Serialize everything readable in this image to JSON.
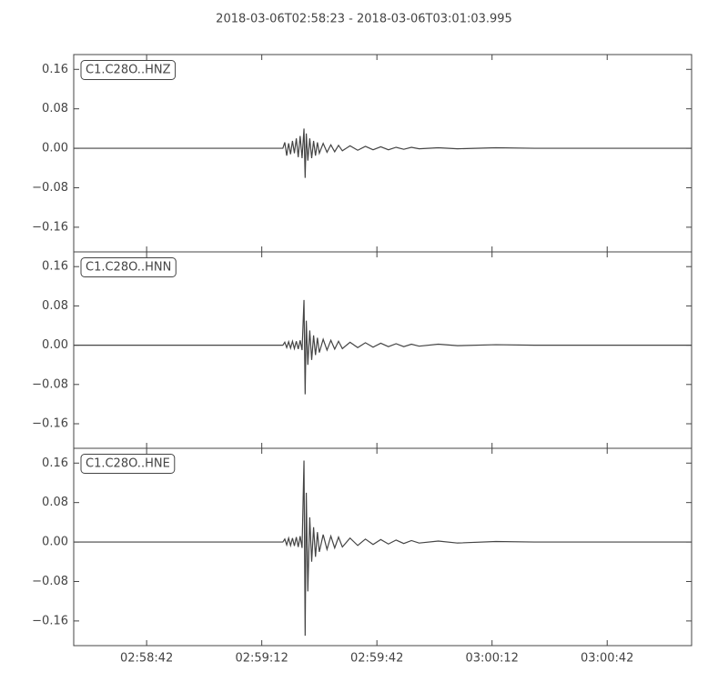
{
  "title": "2018-03-06T02:58:23  -  2018-03-06T03:01:03.995",
  "chart_data": [
    {
      "type": "line",
      "label": "C1.C28O..HNZ",
      "color": "#444444",
      "x": [
        0,
        54.5,
        55,
        55.5,
        56,
        56.5,
        57,
        57.5,
        58,
        58.5,
        59,
        59.5,
        60,
        60.3,
        60.6,
        61,
        61.5,
        62,
        62.5,
        63,
        63.5,
        64,
        65,
        66,
        67,
        68,
        69,
        70,
        72,
        74,
        76,
        78,
        80,
        82,
        84,
        86,
        88,
        90,
        95,
        100,
        110,
        120,
        160.99
      ],
      "values": [
        0,
        0,
        0.012,
        -0.015,
        0.01,
        -0.012,
        0.015,
        -0.01,
        0.02,
        -0.018,
        0.025,
        -0.02,
        0.04,
        -0.06,
        0.03,
        -0.025,
        0.02,
        -0.02,
        0.015,
        -0.015,
        0.012,
        -0.01,
        0.01,
        -0.008,
        0.007,
        -0.007,
        0.006,
        -0.005,
        0.005,
        -0.004,
        0.004,
        -0.003,
        0.003,
        -0.003,
        0.002,
        -0.002,
        0.002,
        -0.001,
        0.001,
        -0.001,
        0.001,
        0,
        0
      ],
      "xlim": [
        0,
        160.995
      ],
      "ylim": [
        -0.21,
        0.19
      ],
      "yticks": [
        {
          "value": -0.16,
          "label": "−0.16"
        },
        {
          "value": -0.08,
          "label": "−0.08"
        },
        {
          "value": 0,
          "label": "0.00"
        },
        0.08,
        0.16
      ]
    },
    {
      "type": "line",
      "label": "C1.C28O..HNN",
      "color": "#444444",
      "x": [
        0,
        54.5,
        55,
        55.5,
        56,
        56.5,
        57,
        57.5,
        58,
        58.5,
        59,
        59.5,
        60,
        60.3,
        60.6,
        61,
        61.5,
        62,
        62.5,
        63,
        63.5,
        64,
        65,
        66,
        67,
        68,
        69,
        70,
        72,
        74,
        76,
        78,
        80,
        82,
        84,
        86,
        88,
        90,
        95,
        100,
        110,
        120,
        160.99
      ],
      "values": [
        0,
        0,
        0.006,
        -0.005,
        0.007,
        -0.006,
        0.008,
        -0.007,
        0.008,
        -0.008,
        0.01,
        -0.01,
        0.092,
        -0.1,
        0.05,
        -0.04,
        0.03,
        -0.03,
        0.02,
        -0.02,
        0.015,
        -0.015,
        0.012,
        -0.01,
        0.01,
        -0.008,
        0.008,
        -0.007,
        0.006,
        -0.005,
        0.005,
        -0.004,
        0.004,
        -0.003,
        0.003,
        -0.003,
        0.002,
        -0.002,
        0.002,
        -0.001,
        0.001,
        0,
        0
      ],
      "xlim": [
        0,
        160.995
      ],
      "ylim": [
        -0.21,
        0.19
      ],
      "yticks": [
        {
          "value": -0.16,
          "label": "−0.16"
        },
        {
          "value": -0.08,
          "label": "−0.08"
        },
        {
          "value": 0,
          "label": "0.00"
        },
        0.08,
        0.16
      ]
    },
    {
      "type": "line",
      "label": "C1.C28O..HNE",
      "color": "#444444",
      "x": [
        0,
        54.5,
        55,
        55.5,
        56,
        56.5,
        57,
        57.5,
        58,
        58.5,
        59,
        59.5,
        60,
        60.3,
        60.6,
        61,
        61.5,
        62,
        62.5,
        63,
        63.5,
        64,
        65,
        66,
        67,
        68,
        69,
        70,
        72,
        74,
        76,
        78,
        80,
        82,
        84,
        86,
        88,
        90,
        95,
        100,
        110,
        120,
        160.99
      ],
      "values": [
        0,
        0,
        0.006,
        -0.006,
        0.008,
        -0.007,
        0.008,
        -0.008,
        0.01,
        -0.01,
        0.012,
        -0.012,
        0.165,
        -0.19,
        0.1,
        -0.1,
        0.05,
        -0.04,
        0.03,
        -0.03,
        0.02,
        -0.02,
        0.015,
        -0.015,
        0.012,
        -0.012,
        0.01,
        -0.01,
        0.008,
        -0.007,
        0.006,
        -0.005,
        0.005,
        -0.004,
        0.004,
        -0.003,
        0.003,
        -0.002,
        0.002,
        -0.002,
        0.001,
        0,
        0
      ],
      "xlim": [
        0,
        160.995
      ],
      "ylim": [
        -0.21,
        0.19
      ],
      "yticks": [
        {
          "value": -0.16,
          "label": "−0.16"
        },
        {
          "value": -0.08,
          "label": "−0.08"
        },
        {
          "value": 0,
          "label": "0.00"
        },
        0.08,
        0.16
      ],
      "xticks": [
        {
          "value": 19,
          "label": "02:58:42"
        },
        {
          "value": 49,
          "label": "02:59:12"
        },
        {
          "value": 79,
          "label": "02:59:42"
        },
        {
          "value": 109,
          "label": "03:00:12"
        },
        {
          "value": 139,
          "label": "03:00:42"
        }
      ]
    }
  ]
}
